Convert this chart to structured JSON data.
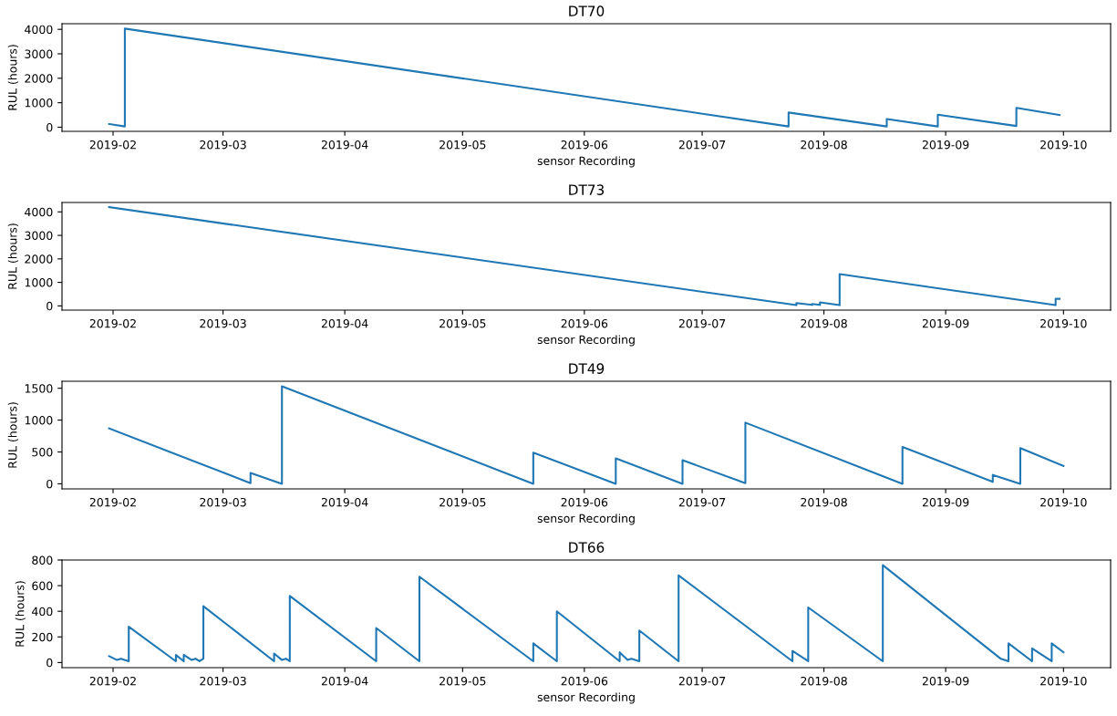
{
  "chart_data": [
    {
      "type": "line",
      "title": "DT70",
      "xlabel": "sensor Recording",
      "ylabel": "RUL (hours)",
      "x": [
        "2019-01-31",
        "2019-02-04",
        "2019-02-04",
        "2019-07-23",
        "2019-07-23",
        "2019-08-17",
        "2019-08-17",
        "2019-08-30",
        "2019-08-30",
        "2019-09-19",
        "2019-09-19",
        "2019-09-30"
      ],
      "series": [
        {
          "color": "#1f77b4",
          "values": [
            130,
            30,
            4030,
            30,
            600,
            30,
            330,
            30,
            510,
            50,
            790,
            500
          ]
        }
      ],
      "xlim": [
        "2019-01-19",
        "2019-10-13"
      ],
      "xticks": [
        "2019-02",
        "2019-03",
        "2019-04",
        "2019-05",
        "2019-06",
        "2019-07",
        "2019-08",
        "2019-09",
        "2019-10"
      ],
      "ylim": [
        -170,
        4230
      ],
      "yticks": [
        0,
        1000,
        2000,
        3000,
        4000
      ]
    },
    {
      "type": "line",
      "title": "DT73",
      "xlabel": "sensor Recording",
      "ylabel": "RUL (hours)",
      "x": [
        "2019-01-31",
        "2019-07-25",
        "2019-07-25",
        "2019-07-29",
        "2019-07-29",
        "2019-07-31",
        "2019-07-31",
        "2019-08-05",
        "2019-08-05",
        "2019-09-29",
        "2019-09-29",
        "2019-09-30"
      ],
      "series": [
        {
          "color": "#1f77b4",
          "values": [
            4200,
            30,
            120,
            40,
            80,
            40,
            150,
            30,
            1350,
            30,
            300,
            300
          ]
        }
      ],
      "xlim": [
        "2019-01-19",
        "2019-10-13"
      ],
      "xticks": [
        "2019-02",
        "2019-03",
        "2019-04",
        "2019-05",
        "2019-06",
        "2019-07",
        "2019-08",
        "2019-09",
        "2019-10"
      ],
      "ylim": [
        -180,
        4400
      ],
      "yticks": [
        0,
        1000,
        2000,
        3000,
        4000
      ]
    },
    {
      "type": "line",
      "title": "DT49",
      "xlabel": "sensor Recording",
      "ylabel": "RUL (hours)",
      "x": [
        "2019-01-31",
        "2019-03-08",
        "2019-03-08",
        "2019-03-16",
        "2019-03-16",
        "2019-05-19",
        "2019-05-19",
        "2019-06-09",
        "2019-06-09",
        "2019-06-26",
        "2019-06-26",
        "2019-07-12",
        "2019-07-12",
        "2019-08-21",
        "2019-08-21",
        "2019-09-13",
        "2019-09-13",
        "2019-09-20",
        "2019-09-20",
        "2019-10-01"
      ],
      "series": [
        {
          "color": "#1f77b4",
          "values": [
            870,
            10,
            170,
            0,
            1530,
            0,
            490,
            0,
            400,
            0,
            370,
            10,
            960,
            0,
            580,
            30,
            140,
            0,
            560,
            280
          ]
        }
      ],
      "xlim": [
        "2019-01-19",
        "2019-10-13"
      ],
      "xticks": [
        "2019-02",
        "2019-03",
        "2019-04",
        "2019-05",
        "2019-06",
        "2019-07",
        "2019-08",
        "2019-09",
        "2019-10"
      ],
      "ylim": [
        -80,
        1610
      ],
      "yticks": [
        0,
        500,
        1000,
        1500
      ]
    },
    {
      "type": "line",
      "title": "DT66",
      "xlabel": "sensor Recording",
      "ylabel": "RUL (hours)",
      "x": [
        "2019-01-31",
        "2019-02-02",
        "2019-02-03",
        "2019-02-05",
        "2019-02-05",
        "2019-02-17",
        "2019-02-17",
        "2019-02-19",
        "2019-02-19",
        "2019-02-21",
        "2019-02-22",
        "2019-02-23",
        "2019-02-24",
        "2019-02-24",
        "2019-03-14",
        "2019-03-14",
        "2019-03-16",
        "2019-03-17",
        "2019-03-18",
        "2019-03-18",
        "2019-04-09",
        "2019-04-09",
        "2019-04-20",
        "2019-04-20",
        "2019-05-19",
        "2019-05-19",
        "2019-05-25",
        "2019-05-25",
        "2019-06-10",
        "2019-06-10",
        "2019-06-12",
        "2019-06-13",
        "2019-06-15",
        "2019-06-15",
        "2019-06-25",
        "2019-06-25",
        "2019-07-24",
        "2019-07-24",
        "2019-07-28",
        "2019-07-28",
        "2019-08-16",
        "2019-08-16",
        "2019-09-15",
        "2019-09-16",
        "2019-09-17",
        "2019-09-17",
        "2019-09-23",
        "2019-09-23",
        "2019-09-28",
        "2019-09-28",
        "2019-10-01"
      ],
      "series": [
        {
          "color": "#1f77b4",
          "values": [
            50,
            20,
            30,
            10,
            280,
            10,
            60,
            10,
            60,
            20,
            30,
            10,
            30,
            440,
            10,
            70,
            20,
            30,
            10,
            520,
            10,
            270,
            10,
            670,
            10,
            150,
            10,
            400,
            10,
            80,
            20,
            30,
            10,
            250,
            10,
            680,
            10,
            90,
            10,
            430,
            10,
            760,
            30,
            20,
            10,
            150,
            10,
            110,
            10,
            150,
            80
          ]
        }
      ],
      "xlim": [
        "2019-01-19",
        "2019-10-13"
      ],
      "xticks": [
        "2019-02",
        "2019-03",
        "2019-04",
        "2019-05",
        "2019-06",
        "2019-07",
        "2019-08",
        "2019-09",
        "2019-10"
      ],
      "ylim": [
        -40,
        800
      ],
      "yticks": [
        0,
        200,
        400,
        600,
        800
      ]
    }
  ]
}
